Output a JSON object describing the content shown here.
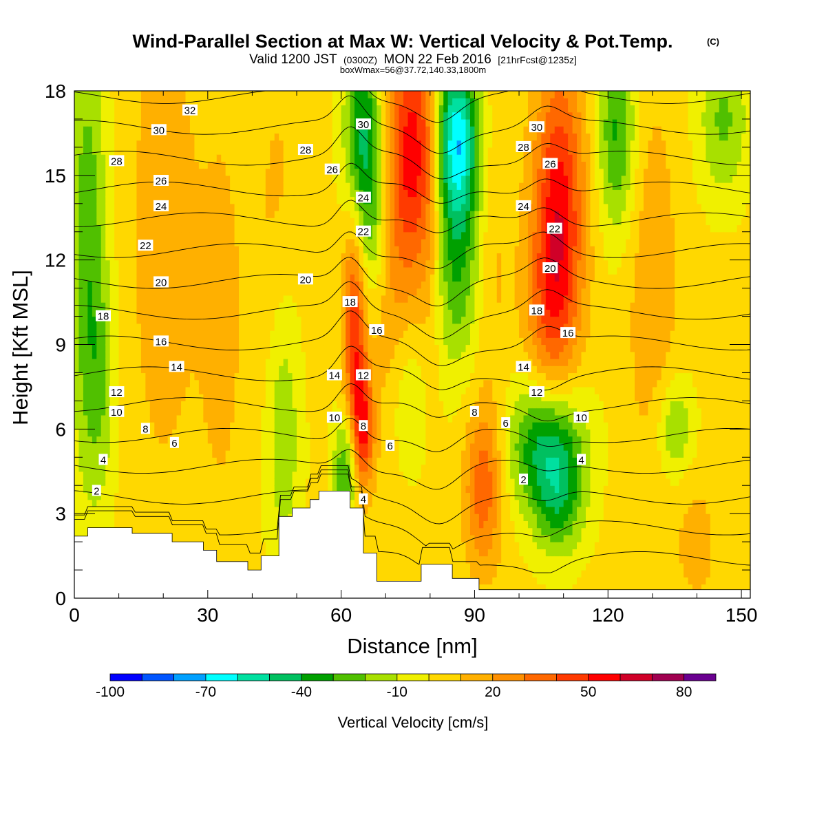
{
  "title": {
    "main": "Wind-Parallel Section at Max W: Vertical Velocity & Pot.Temp.",
    "copyright": "(C)",
    "valid_prefix": "Valid 1200 JST",
    "valid_utc": "(0300Z)",
    "valid_date": "MON 22 Feb 2016",
    "forecast": "[21hrFcst@1235z]",
    "box": "boxWmax=56@37.72,140.33,1800m"
  },
  "chart_data": {
    "type": "heatmap",
    "xlabel": "Distance [nm]",
    "ylabel": "Height [Kft MSL]",
    "xlim": [
      0,
      152
    ],
    "ylim": [
      0,
      18
    ],
    "x_ticks": [
      0,
      30,
      60,
      90,
      120,
      150
    ],
    "y_ticks": [
      0,
      3,
      6,
      9,
      12,
      15,
      18
    ],
    "colorbar": {
      "title": "Vertical Velocity [cm/s]",
      "levels": [
        -100,
        -90,
        -80,
        -70,
        -60,
        -50,
        -40,
        -30,
        -20,
        -10,
        0,
        10,
        20,
        30,
        40,
        50,
        60,
        70,
        80,
        90
      ],
      "colors": [
        "#0000ff",
        "#0055ff",
        "#00a0ff",
        "#00ffff",
        "#00e0a0",
        "#00c060",
        "#00a000",
        "#50c000",
        "#a8e000",
        "#f0f000",
        "#ffd800",
        "#ffb000",
        "#ff9000",
        "#ff6800",
        "#ff3a00",
        "#ff0000",
        "#d00028",
        "#a00050",
        "#6a0090"
      ],
      "tick_labels": [
        "-100",
        "-70",
        "-40",
        "-10",
        "20",
        "50",
        "80"
      ]
    },
    "terrain": [
      {
        "x": 0,
        "h": 2.2
      },
      {
        "x": 3,
        "h": 2.5
      },
      {
        "x": 13,
        "h": 2.3
      },
      {
        "x": 22,
        "h": 2.0
      },
      {
        "x": 29,
        "h": 1.7
      },
      {
        "x": 32,
        "h": 1.3
      },
      {
        "x": 39,
        "h": 1.0
      },
      {
        "x": 42,
        "h": 1.5
      },
      {
        "x": 46,
        "h": 2.9
      },
      {
        "x": 49,
        "h": 3.2
      },
      {
        "x": 53,
        "h": 3.5
      },
      {
        "x": 55,
        "h": 3.8
      },
      {
        "x": 62,
        "h": 3.2
      },
      {
        "x": 65,
        "h": 1.6
      },
      {
        "x": 68,
        "h": 0.6
      },
      {
        "x": 78,
        "h": 1.2
      },
      {
        "x": 85,
        "h": 0.7
      },
      {
        "x": 91,
        "h": 0.3
      },
      {
        "x": 100,
        "h": 0.3
      },
      {
        "x": 152,
        "h": 0.3
      }
    ],
    "velocity_features": [
      {
        "x": 3,
        "y": 12.5,
        "value": -30,
        "sx": 3,
        "sy": 6
      },
      {
        "x": 6,
        "y": 7.5,
        "value": -15,
        "sx": 2.5,
        "sy": 3
      },
      {
        "x": 20,
        "y": 13,
        "value": 15,
        "sx": 5,
        "sy": 6
      },
      {
        "x": 33,
        "y": 10,
        "value": 10,
        "sx": 4,
        "sy": 6
      },
      {
        "x": 47,
        "y": 6.5,
        "value": -25,
        "sx": 3,
        "sy": 4
      },
      {
        "x": 46,
        "y": 12,
        "value": 12,
        "sx": 4,
        "sy": 5
      },
      {
        "x": 61,
        "y": 4.5,
        "value": -35,
        "sx": 2,
        "sy": 1.5
      },
      {
        "x": 63,
        "y": 9.5,
        "value": 45,
        "sx": 1.8,
        "sy": 2.8
      },
      {
        "x": 65,
        "y": 6,
        "value": 45,
        "sx": 1.6,
        "sy": 1.5
      },
      {
        "x": 65,
        "y": 16.5,
        "value": -45,
        "sx": 3,
        "sy": 2.5
      },
      {
        "x": 67,
        "y": 13,
        "value": -20,
        "sx": 2.5,
        "sy": 2
      },
      {
        "x": 76,
        "y": 16,
        "value": 50,
        "sx": 4,
        "sy": 3
      },
      {
        "x": 72,
        "y": 10,
        "value": 15,
        "sx": 4,
        "sy": 4
      },
      {
        "x": 75,
        "y": 7,
        "value": -20,
        "sx": 3,
        "sy": 2
      },
      {
        "x": 86,
        "y": 16.5,
        "value": -60,
        "sx": 3.5,
        "sy": 2
      },
      {
        "x": 86,
        "y": 12.5,
        "value": -35,
        "sx": 4,
        "sy": 3
      },
      {
        "x": 80,
        "y": 13,
        "value": 12,
        "sx": 2,
        "sy": 4
      },
      {
        "x": 94,
        "y": 12,
        "value": 10,
        "sx": 3,
        "sy": 4
      },
      {
        "x": 109,
        "y": 14,
        "value": 50,
        "sx": 4,
        "sy": 3.5
      },
      {
        "x": 107,
        "y": 10,
        "value": 25,
        "sx": 4,
        "sy": 2.5
      },
      {
        "x": 106,
        "y": 5.5,
        "value": -45,
        "sx": 6,
        "sy": 1.7
      },
      {
        "x": 109,
        "y": 3.5,
        "value": -30,
        "sx": 4,
        "sy": 1.5
      },
      {
        "x": 92,
        "y": 4,
        "value": 35,
        "sx": 3,
        "sy": 2
      },
      {
        "x": 122,
        "y": 16.5,
        "value": -35,
        "sx": 3,
        "sy": 2.5
      },
      {
        "x": 130,
        "y": 11,
        "value": 15,
        "sx": 4,
        "sy": 5
      },
      {
        "x": 146,
        "y": 17,
        "value": -25,
        "sx": 4,
        "sy": 2
      },
      {
        "x": 135,
        "y": 6,
        "value": -25,
        "sx": 3,
        "sy": 1.3
      },
      {
        "x": 140,
        "y": 2,
        "value": 10,
        "sx": 4,
        "sy": 2
      }
    ],
    "theta_contours": {
      "levels": [
        2,
        4,
        6,
        8,
        10,
        12,
        14,
        16,
        18,
        20,
        22,
        24,
        26,
        28,
        30,
        32
      ],
      "labels": [
        {
          "text": "32",
          "x": 26,
          "y": 17.3
        },
        {
          "text": "30",
          "x": 19,
          "y": 16.6
        },
        {
          "text": "30",
          "x": 65,
          "y": 16.8
        },
        {
          "text": "30",
          "x": 104,
          "y": 16.7
        },
        {
          "text": "28",
          "x": 9.5,
          "y": 15.5
        },
        {
          "text": "28",
          "x": 52,
          "y": 15.9
        },
        {
          "text": "28",
          "x": 101,
          "y": 16.0
        },
        {
          "text": "26",
          "x": 19.5,
          "y": 14.8
        },
        {
          "text": "26",
          "x": 58,
          "y": 15.2
        },
        {
          "text": "26",
          "x": 107,
          "y": 15.4
        },
        {
          "text": "24",
          "x": 19.5,
          "y": 13.9
        },
        {
          "text": "24",
          "x": 65,
          "y": 14.2
        },
        {
          "text": "24",
          "x": 101,
          "y": 13.9
        },
        {
          "text": "22",
          "x": 16,
          "y": 12.5
        },
        {
          "text": "22",
          "x": 65,
          "y": 13.0
        },
        {
          "text": "22",
          "x": 108,
          "y": 13.1
        },
        {
          "text": "20",
          "x": 19.5,
          "y": 11.2
        },
        {
          "text": "20",
          "x": 52,
          "y": 11.3
        },
        {
          "text": "20",
          "x": 107,
          "y": 11.7
        },
        {
          "text": "18",
          "x": 6.5,
          "y": 10.0
        },
        {
          "text": "18",
          "x": 62,
          "y": 10.5
        },
        {
          "text": "18",
          "x": 104,
          "y": 10.2
        },
        {
          "text": "16",
          "x": 19.5,
          "y": 9.1
        },
        {
          "text": "16",
          "x": 68,
          "y": 9.5
        },
        {
          "text": "16",
          "x": 111,
          "y": 9.4
        },
        {
          "text": "14",
          "x": 23,
          "y": 8.2
        },
        {
          "text": "14",
          "x": 58.5,
          "y": 7.9
        },
        {
          "text": "14",
          "x": 101,
          "y": 8.2
        },
        {
          "text": "12",
          "x": 9.5,
          "y": 7.3
        },
        {
          "text": "12",
          "x": 65,
          "y": 7.9
        },
        {
          "text": "12",
          "x": 104,
          "y": 7.3
        },
        {
          "text": "10",
          "x": 9.5,
          "y": 6.6
        },
        {
          "text": "10",
          "x": 58.5,
          "y": 6.4
        },
        {
          "text": "10",
          "x": 114,
          "y": 6.4
        },
        {
          "text": "8",
          "x": 16,
          "y": 6.0
        },
        {
          "text": "8",
          "x": 65,
          "y": 6.1
        },
        {
          "text": "8",
          "x": 90,
          "y": 6.6
        },
        {
          "text": "6",
          "x": 22.5,
          "y": 5.5
        },
        {
          "text": "6",
          "x": 71,
          "y": 5.4
        },
        {
          "text": "6",
          "x": 97,
          "y": 6.2
        },
        {
          "text": "4",
          "x": 6.5,
          "y": 4.9
        },
        {
          "text": "4",
          "x": 114,
          "y": 4.9
        },
        {
          "text": "4",
          "x": 65,
          "y": 3.5
        },
        {
          "text": "2",
          "x": 5,
          "y": 3.8
        },
        {
          "text": "2",
          "x": 101,
          "y": 4.2
        }
      ]
    }
  }
}
